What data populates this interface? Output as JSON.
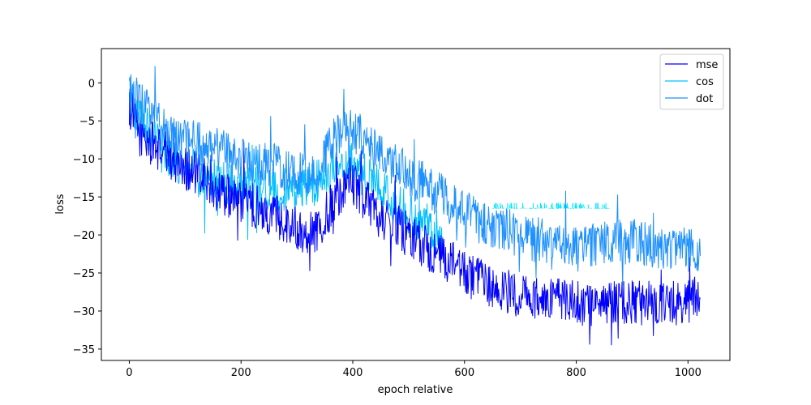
{
  "chart_data": {
    "type": "line",
    "title": "",
    "xlabel": "epoch relative",
    "ylabel": "loss",
    "xlim": [
      -50,
      1075
    ],
    "ylim": [
      -36.5,
      4.5
    ],
    "x_ticks": [
      0,
      200,
      400,
      600,
      800,
      1000
    ],
    "y_ticks": [
      0,
      -5,
      -10,
      -15,
      -20,
      -25,
      -30,
      -35
    ],
    "x_tick_labels": [
      "0",
      "200",
      "400",
      "600",
      "800",
      "1000"
    ],
    "y_tick_labels": [
      "0",
      "−5",
      "−10",
      "−15",
      "−20",
      "−25",
      "−30",
      "−35"
    ],
    "grid": false,
    "legend_position": "top-right",
    "x_range": [
      0,
      1022
    ],
    "series": [
      {
        "name": "mse",
        "color": "#0000ff",
        "trend": [
          [
            0,
            -3
          ],
          [
            20,
            -7
          ],
          [
            60,
            -9
          ],
          [
            120,
            -12
          ],
          [
            180,
            -15
          ],
          [
            250,
            -17
          ],
          [
            300,
            -19
          ],
          [
            330,
            -20
          ],
          [
            370,
            -15
          ],
          [
            400,
            -13
          ],
          [
            440,
            -17
          ],
          [
            480,
            -19
          ],
          [
            540,
            -22
          ],
          [
            600,
            -25
          ],
          [
            650,
            -27
          ],
          [
            700,
            -28
          ],
          [
            800,
            -29
          ],
          [
            900,
            -29
          ],
          [
            1000,
            -29
          ],
          [
            1022,
            -28
          ]
        ],
        "noise": 3.0,
        "floor": -34.5,
        "ceil": 2.0
      },
      {
        "name": "cos",
        "color": "#00bfff",
        "trend": [
          [
            0,
            -2
          ],
          [
            20,
            -5
          ],
          [
            60,
            -9
          ],
          [
            120,
            -12
          ],
          [
            200,
            -14
          ],
          [
            300,
            -14
          ],
          [
            340,
            -13
          ],
          [
            380,
            -10
          ],
          [
            420,
            -12
          ],
          [
            480,
            -16
          ],
          [
            520,
            -18
          ],
          [
            560,
            -20
          ]
        ],
        "noise": 3.0,
        "floor": -25.5,
        "ceil": 2.0,
        "dashed_tail": {
          "x_start": 650,
          "x_end": 860,
          "y": -16.5
        }
      },
      {
        "name": "dot",
        "color": "#1e90ff",
        "trend": [
          [
            0,
            -1
          ],
          [
            20,
            -3
          ],
          [
            60,
            -6
          ],
          [
            120,
            -8
          ],
          [
            200,
            -10
          ],
          [
            260,
            -11
          ],
          [
            300,
            -12
          ],
          [
            330,
            -12
          ],
          [
            370,
            -7
          ],
          [
            400,
            -6
          ],
          [
            440,
            -9
          ],
          [
            500,
            -12
          ],
          [
            560,
            -15
          ],
          [
            620,
            -18
          ],
          [
            700,
            -20
          ],
          [
            800,
            -22
          ],
          [
            850,
            -21
          ],
          [
            900,
            -21
          ],
          [
            1000,
            -22
          ],
          [
            1022,
            -22
          ]
        ],
        "noise": 3.0,
        "floor": -33,
        "ceil": 2.6
      }
    ]
  }
}
